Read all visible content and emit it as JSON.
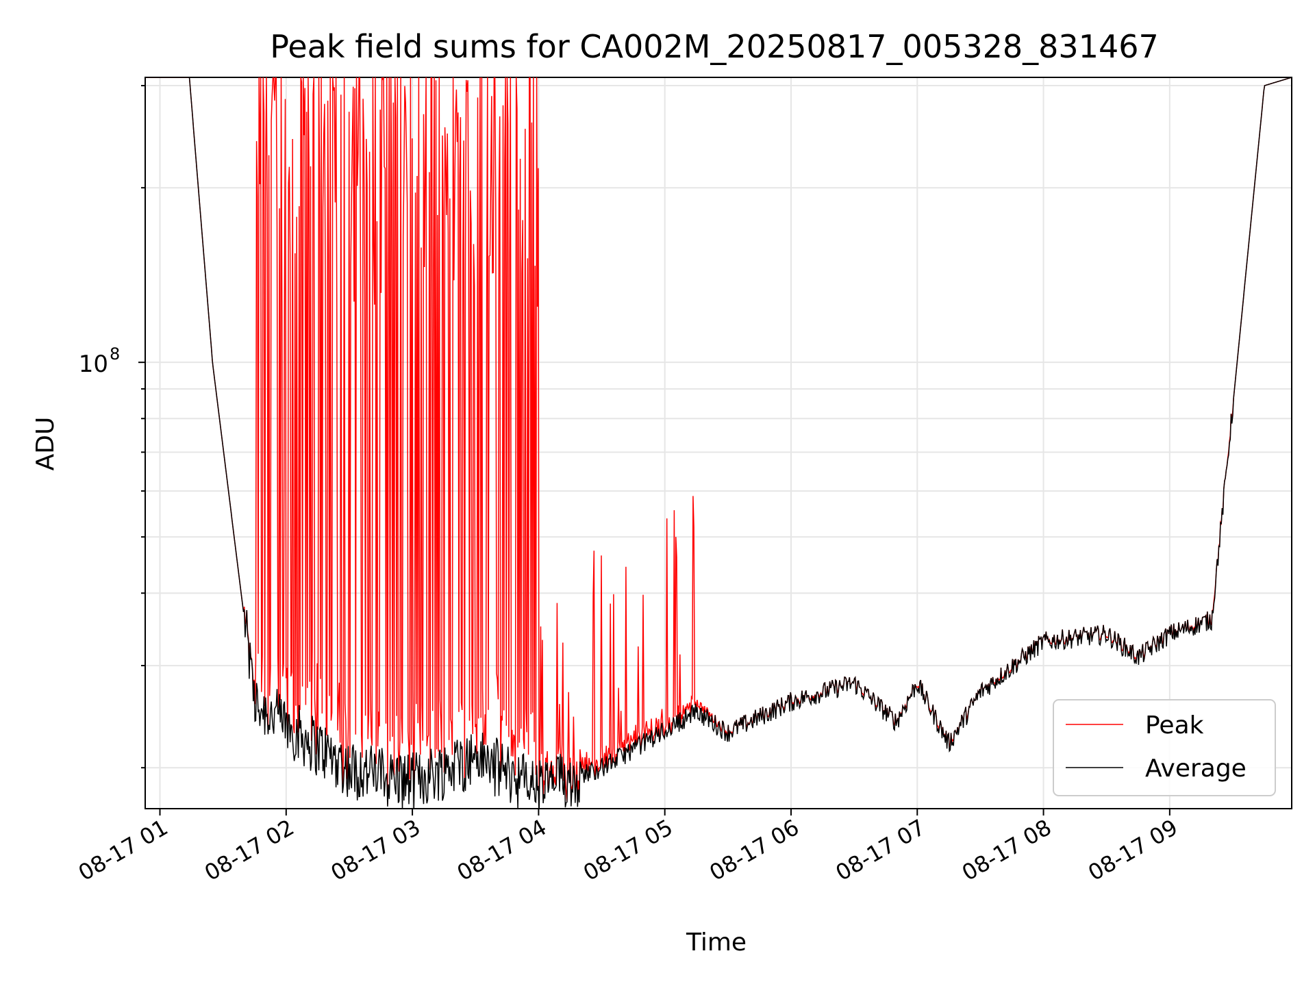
{
  "chart_data": {
    "type": "line",
    "title": "Peak field sums for CA002M_20250817_005328_831467",
    "xlabel": "Time",
    "ylabel": "ADU",
    "y_scale": "log",
    "ylim": [
      17000000,
      310000000
    ],
    "xlim": [
      "2025-08-17 00:53",
      "2025-08-17 09:58"
    ],
    "grid": true,
    "legend_position": "lower-right",
    "x_tick_labels": [
      "08-17 01",
      "08-17 02",
      "08-17 03",
      "08-17 04",
      "08-17 05",
      "08-17 06",
      "08-17 07",
      "08-17 08",
      "08-17 09"
    ],
    "y_tick_labels": [
      {
        "value": 100000000,
        "base": "10",
        "exp": "8"
      }
    ],
    "series": [
      {
        "name": "Peak",
        "color": "#ff0000",
        "x": [
          "2025-08-17 00:53",
          "2025-08-17 01:14",
          "2025-08-17 01:25",
          "2025-08-17 01:45",
          "2025-08-17 02:30",
          "2025-08-17 03:00",
          "2025-08-17 03:30",
          "2025-08-17 04:00",
          "2025-08-17 04:30",
          "2025-08-17 05:15",
          "2025-08-17 05:30",
          "2025-08-17 06:00",
          "2025-08-17 06:30",
          "2025-08-17 06:50",
          "2025-08-17 07:00",
          "2025-08-17 07:15",
          "2025-08-17 07:30",
          "2025-08-17 08:00",
          "2025-08-17 08:30",
          "2025-08-17 08:45",
          "2025-08-17 09:00",
          "2025-08-17 09:20",
          "2025-08-17 09:45",
          "2025-08-17 09:58"
        ],
        "values": [
          310000000,
          310000000,
          100000000,
          27000000,
          305000000,
          305000000,
          310000000,
          22000000,
          21000000,
          26000000,
          23000000,
          26000000,
          28000000,
          24000000,
          28000000,
          22000000,
          27000000,
          33000000,
          34000000,
          31000000,
          34000000,
          36000000,
          300000000,
          310000000
        ],
        "peak_spike_max": [
          310000000,
          310000000,
          79000000,
          52000000
        ]
      },
      {
        "name": "Average",
        "color": "#000000",
        "x": [
          "2025-08-17 00:53",
          "2025-08-17 01:14",
          "2025-08-17 01:25",
          "2025-08-17 01:45",
          "2025-08-17 02:30",
          "2025-08-17 03:00",
          "2025-08-17 03:30",
          "2025-08-17 04:00",
          "2025-08-17 04:30",
          "2025-08-17 05:15",
          "2025-08-17 05:30",
          "2025-08-17 06:00",
          "2025-08-17 06:30",
          "2025-08-17 06:50",
          "2025-08-17 07:00",
          "2025-08-17 07:15",
          "2025-08-17 07:30",
          "2025-08-17 08:00",
          "2025-08-17 08:30",
          "2025-08-17 08:45",
          "2025-08-17 09:00",
          "2025-08-17 09:20",
          "2025-08-17 09:45",
          "2025-08-17 09:58"
        ],
        "values": [
          310000000,
          310000000,
          100000000,
          26000000,
          20000000,
          19000000,
          21000000,
          18500000,
          20000000,
          25000000,
          23000000,
          26000000,
          28000000,
          24000000,
          28000000,
          22000000,
          27000000,
          33000000,
          34000000,
          31000000,
          34000000,
          36000000,
          300000000,
          310000000
        ]
      }
    ]
  }
}
